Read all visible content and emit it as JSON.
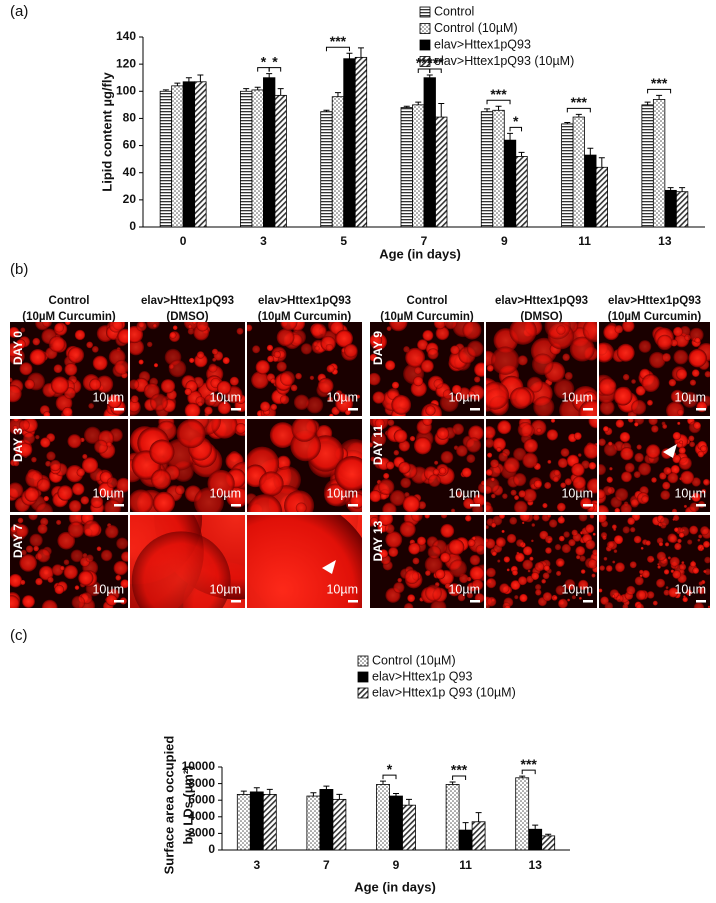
{
  "chart_data": [
    {
      "type": "bar",
      "panel_label": "(a)",
      "y_label": [
        "Lipid content µg/fly"
      ],
      "x_label": "Age (in days)",
      "categories": [
        "0",
        "3",
        "5",
        "7",
        "9",
        "11",
        "13"
      ],
      "series": [
        {
          "name": "Control",
          "fill": "horizontal-stripes",
          "values": [
            100,
            100,
            85,
            88,
            85,
            76,
            90
          ],
          "errors": [
            1,
            2,
            1,
            1,
            2,
            1,
            2
          ]
        },
        {
          "name": "Control (10µM)",
          "fill": "dots",
          "values": [
            104,
            101,
            96,
            90,
            86,
            81,
            94
          ],
          "errors": [
            2,
            2,
            3,
            2,
            3,
            2,
            3
          ]
        },
        {
          "name": "elav>Httex1pQ93",
          "fill": "solid",
          "values": [
            107,
            110,
            124,
            110,
            64,
            53,
            27
          ],
          "errors": [
            3,
            3,
            4,
            2,
            5,
            5,
            2
          ]
        },
        {
          "name": "elav>Httex1pQ93 (10µM)",
          "fill": "diagonal-stripes",
          "values": [
            107,
            97,
            125,
            81,
            52,
            44,
            26
          ],
          "errors": [
            5,
            5,
            7,
            10,
            3,
            7,
            3
          ]
        }
      ],
      "ylim": [
        0,
        140
      ],
      "yticks": [
        0,
        20,
        40,
        60,
        80,
        100,
        120,
        140
      ],
      "legend": "top-right",
      "annotations": [
        {
          "text": "*",
          "category": "3",
          "between": [
            "Control (10µM)",
            "elav>Httex1pQ93"
          ]
        },
        {
          "text": "*",
          "category": "3",
          "between": [
            "elav>Httex1pQ93",
            "elav>Httex1pQ93 (10µM)"
          ]
        },
        {
          "text": "***",
          "category": "5",
          "between": [
            "Control",
            "elav>Httex1pQ93"
          ]
        },
        {
          "text": "***",
          "category": "7",
          "between": [
            "Control (10µM)",
            "elav>Httex1pQ93"
          ]
        },
        {
          "text": "***",
          "category": "7",
          "between": [
            "elav>Httex1pQ93",
            "elav>Httex1pQ93 (10µM)"
          ]
        },
        {
          "text": "***",
          "category": "9",
          "between": [
            "Control",
            "elav>Httex1pQ93"
          ]
        },
        {
          "text": "*",
          "category": "9",
          "between": [
            "elav>Httex1pQ93",
            "elav>Httex1pQ93 (10µM)"
          ]
        },
        {
          "text": "***",
          "category": "11",
          "between": [
            "Control",
            "elav>Httex1pQ93"
          ]
        },
        {
          "text": "***",
          "category": "13",
          "between": [
            "Control",
            "elav>Httex1pQ93"
          ]
        }
      ]
    },
    {
      "type": "bar",
      "panel_label": "(c)",
      "y_label": [
        "Surface area occupied",
        "by LDs (µm²)"
      ],
      "x_label": "Age (in days)",
      "categories": [
        "3",
        "7",
        "9",
        "11",
        "13"
      ],
      "series": [
        {
          "name": "Control (10µM)",
          "fill": "dots",
          "values": [
            6700,
            6500,
            7900,
            7900,
            8700
          ],
          "errors": [
            400,
            400,
            400,
            300,
            200
          ]
        },
        {
          "name": "elav>Httex1p Q93",
          "fill": "solid",
          "values": [
            7000,
            7300,
            6500,
            2400,
            2500
          ],
          "errors": [
            500,
            400,
            300,
            900,
            500
          ]
        },
        {
          "name": "elav>Httex1p Q93 (10µM)",
          "fill": "diagonal-stripes",
          "values": [
            6700,
            6100,
            5400,
            3400,
            1700
          ],
          "errors": [
            600,
            600,
            700,
            1100,
            200
          ]
        }
      ],
      "ylim": [
        0,
        10000
      ],
      "yticks": [
        0,
        2000,
        4000,
        6000,
        8000,
        10000
      ],
      "legend": "top-right",
      "annotations": [
        {
          "text": "*",
          "category": "9",
          "between": [
            "Control (10µM)",
            "elav>Httex1p Q93"
          ]
        },
        {
          "text": "***",
          "category": "11",
          "between": [
            "Control (10µM)",
            "elav>Httex1p Q93"
          ]
        },
        {
          "text": "***",
          "category": "13",
          "between": [
            "Control (10µM)",
            "elav>Httex1p Q93"
          ]
        }
      ]
    }
  ],
  "microscopy": {
    "panel_label": "(b)",
    "scale_bar": "10µm",
    "groups": [
      {
        "columns": [
          [
            "Control",
            "(10µM Curcumin)"
          ],
          [
            "elav>Httex1pQ93",
            "(DMSO)"
          ],
          [
            "elav>Httex1pQ93",
            "(10µM Curcumin)"
          ]
        ],
        "rows": [
          "DAY 0",
          "DAY 3",
          "DAY 7"
        ]
      },
      {
        "columns": [
          [
            "Control",
            "(10µM Curcumin)"
          ],
          [
            "elav>Httex1pQ93",
            "(DMSO)"
          ],
          [
            "elav>Httex1pQ93",
            "(10µM Curcumin)"
          ]
        ],
        "rows": [
          "DAY 9",
          "DAY 11",
          "DAY 13"
        ]
      }
    ]
  }
}
